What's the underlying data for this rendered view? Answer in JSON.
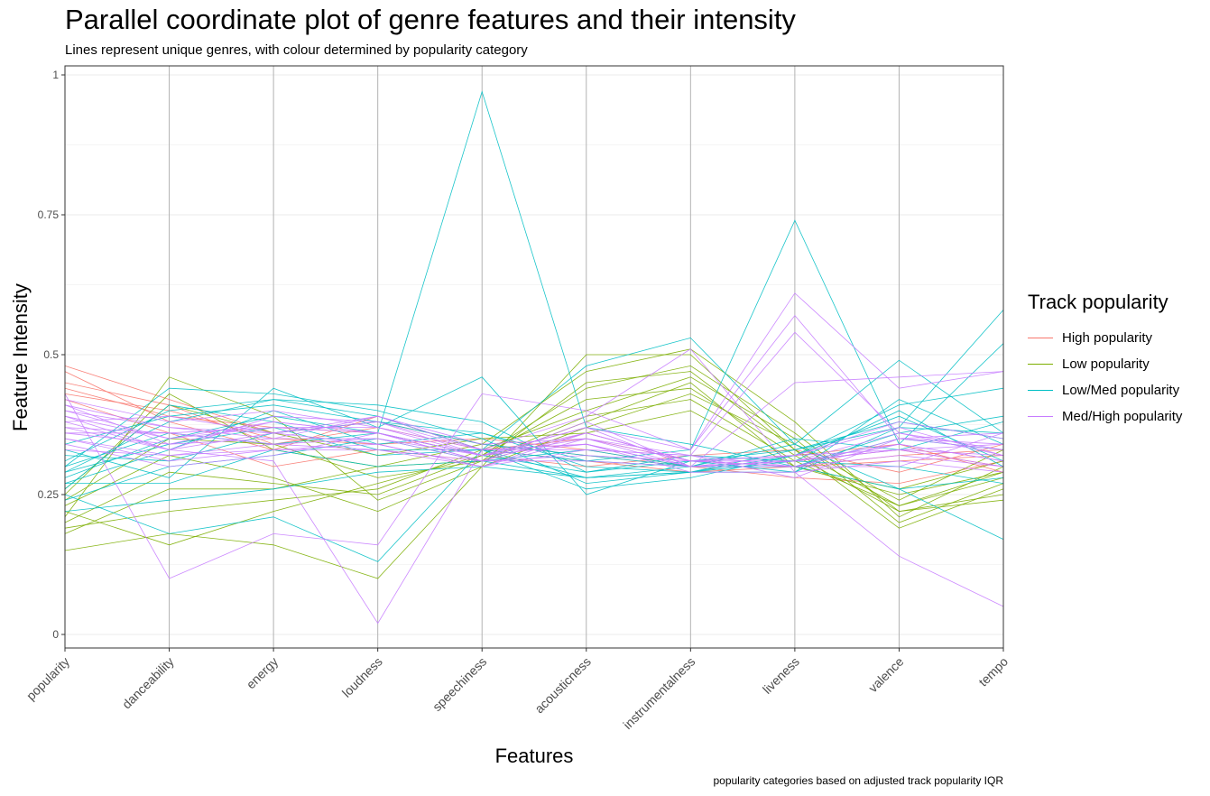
{
  "chart_data": {
    "type": "line",
    "title": "Parallel coordinate plot of genre features and their intensity",
    "subtitle": "Lines represent unique genres, with colour determined by popularity category",
    "caption": "popularity categories based on adjusted track popularity IQR",
    "xlabel": "Features",
    "ylabel": "Feature Intensity",
    "ylim": [
      0,
      1
    ],
    "yticks": [
      0,
      0.25,
      0.5,
      0.75,
      1
    ],
    "ytick_labels": [
      "0",
      "0.25",
      "0.5",
      "0.75",
      "1"
    ],
    "categories": [
      "popularity",
      "danceability",
      "energy",
      "loudness",
      "speechiness",
      "acousticness",
      "instrumentalness",
      "liveness",
      "valence",
      "tempo"
    ],
    "grid": true,
    "legend": {
      "title": "Track popularity",
      "position": "right",
      "entries": [
        {
          "label": "High popularity",
          "color": "#F8766D"
        },
        {
          "label": "Low popularity",
          "color": "#7CAE00"
        },
        {
          "label": "Low/Med popularity",
          "color": "#00BFC4"
        },
        {
          "label": "Med/High popularity",
          "color": "#C77CFF"
        }
      ]
    },
    "series": [
      {
        "group": "High popularity",
        "values": [
          0.48,
          0.42,
          0.36,
          0.38,
          0.34,
          0.32,
          0.3,
          0.31,
          0.33,
          0.3
        ]
      },
      {
        "group": "High popularity",
        "values": [
          0.45,
          0.41,
          0.34,
          0.37,
          0.33,
          0.35,
          0.31,
          0.3,
          0.31,
          0.32
        ]
      },
      {
        "group": "High popularity",
        "values": [
          0.44,
          0.39,
          0.37,
          0.36,
          0.32,
          0.3,
          0.32,
          0.33,
          0.29,
          0.34
        ]
      },
      {
        "group": "High popularity",
        "values": [
          0.43,
          0.4,
          0.35,
          0.34,
          0.35,
          0.33,
          0.3,
          0.28,
          0.27,
          0.31
        ]
      },
      {
        "group": "High popularity",
        "values": [
          0.42,
          0.36,
          0.3,
          0.33,
          0.31,
          0.36,
          0.31,
          0.32,
          0.34,
          0.29
        ]
      },
      {
        "group": "High popularity",
        "values": [
          0.47,
          0.38,
          0.33,
          0.39,
          0.33,
          0.31,
          0.29,
          0.3,
          0.32,
          0.33
        ]
      },
      {
        "group": "Low popularity",
        "values": [
          0.15,
          0.18,
          0.16,
          0.1,
          0.3,
          0.5,
          0.5,
          0.33,
          0.19,
          0.26
        ]
      },
      {
        "group": "Low popularity",
        "values": [
          0.22,
          0.16,
          0.22,
          0.27,
          0.32,
          0.44,
          0.48,
          0.36,
          0.22,
          0.24
        ]
      },
      {
        "group": "Low popularity",
        "values": [
          0.21,
          0.46,
          0.39,
          0.24,
          0.31,
          0.38,
          0.45,
          0.3,
          0.25,
          0.29
        ]
      },
      {
        "group": "Low popularity",
        "values": [
          0.25,
          0.43,
          0.33,
          0.3,
          0.34,
          0.47,
          0.51,
          0.38,
          0.21,
          0.3
        ]
      },
      {
        "group": "Low popularity",
        "values": [
          0.19,
          0.22,
          0.24,
          0.26,
          0.33,
          0.4,
          0.46,
          0.35,
          0.2,
          0.27
        ]
      },
      {
        "group": "Low popularity",
        "values": [
          0.23,
          0.32,
          0.28,
          0.22,
          0.3,
          0.37,
          0.43,
          0.34,
          0.24,
          0.33
        ]
      },
      {
        "group": "Low popularity",
        "values": [
          0.26,
          0.41,
          0.36,
          0.32,
          0.35,
          0.36,
          0.4,
          0.3,
          0.26,
          0.31
        ]
      },
      {
        "group": "Low popularity",
        "values": [
          0.24,
          0.35,
          0.34,
          0.28,
          0.31,
          0.45,
          0.47,
          0.33,
          0.23,
          0.29
        ]
      },
      {
        "group": "Low popularity",
        "values": [
          0.2,
          0.29,
          0.27,
          0.25,
          0.32,
          0.42,
          0.44,
          0.32,
          0.22,
          0.25
        ]
      },
      {
        "group": "Low popularity",
        "values": [
          0.18,
          0.26,
          0.26,
          0.3,
          0.31,
          0.39,
          0.42,
          0.31,
          0.23,
          0.28
        ]
      },
      {
        "group": "Low/Med popularity",
        "values": [
          0.3,
          0.36,
          0.34,
          0.36,
          0.97,
          0.37,
          0.34,
          0.3,
          0.26,
          0.28
        ]
      },
      {
        "group": "Low/Med popularity",
        "values": [
          0.26,
          0.41,
          0.38,
          0.33,
          0.33,
          0.31,
          0.33,
          0.74,
          0.34,
          0.52
        ]
      },
      {
        "group": "Low/Med popularity",
        "values": [
          0.29,
          0.38,
          0.42,
          0.39,
          0.33,
          0.48,
          0.53,
          0.34,
          0.49,
          0.36
        ]
      },
      {
        "group": "Low/Med popularity",
        "values": [
          0.25,
          0.18,
          0.21,
          0.13,
          0.33,
          0.28,
          0.3,
          0.34,
          0.26,
          0.17
        ]
      },
      {
        "group": "Low/Med popularity",
        "values": [
          0.33,
          0.28,
          0.44,
          0.37,
          0.46,
          0.25,
          0.31,
          0.29,
          0.37,
          0.58
        ]
      },
      {
        "group": "Low/Med popularity",
        "values": [
          0.31,
          0.4,
          0.42,
          0.41,
          0.38,
          0.29,
          0.32,
          0.31,
          0.4,
          0.3
        ]
      },
      {
        "group": "Low/Med popularity",
        "values": [
          0.27,
          0.33,
          0.4,
          0.34,
          0.36,
          0.3,
          0.29,
          0.32,
          0.41,
          0.44
        ]
      },
      {
        "group": "Low/Med popularity",
        "values": [
          0.32,
          0.31,
          0.36,
          0.38,
          0.34,
          0.32,
          0.3,
          0.3,
          0.35,
          0.33
        ]
      },
      {
        "group": "Low/Med popularity",
        "values": [
          0.28,
          0.35,
          0.39,
          0.36,
          0.32,
          0.29,
          0.31,
          0.33,
          0.38,
          0.35
        ]
      },
      {
        "group": "Low/Med popularity",
        "values": [
          0.3,
          0.44,
          0.43,
          0.4,
          0.35,
          0.27,
          0.29,
          0.29,
          0.42,
          0.34
        ]
      },
      {
        "group": "Low/Med popularity",
        "values": [
          0.24,
          0.3,
          0.32,
          0.35,
          0.31,
          0.33,
          0.3,
          0.35,
          0.33,
          0.38
        ]
      },
      {
        "group": "Low/Med popularity",
        "values": [
          0.22,
          0.24,
          0.26,
          0.29,
          0.3,
          0.28,
          0.29,
          0.31,
          0.3,
          0.27
        ]
      },
      {
        "group": "Low/Med popularity",
        "values": [
          0.34,
          0.39,
          0.41,
          0.38,
          0.36,
          0.31,
          0.3,
          0.3,
          0.36,
          0.39
        ]
      },
      {
        "group": "Low/Med popularity",
        "values": [
          0.29,
          0.34,
          0.37,
          0.32,
          0.33,
          0.26,
          0.28,
          0.32,
          0.39,
          0.31
        ]
      },
      {
        "group": "Low/Med popularity",
        "values": [
          0.27,
          0.27,
          0.33,
          0.3,
          0.31,
          0.28,
          0.29,
          0.33,
          0.37,
          0.36
        ]
      },
      {
        "group": "Med/High popularity",
        "values": [
          0.43,
          0.1,
          0.18,
          0.16,
          0.43,
          0.4,
          0.33,
          0.61,
          0.44,
          0.47
        ]
      },
      {
        "group": "Med/High popularity",
        "values": [
          0.38,
          0.33,
          0.31,
          0.02,
          0.33,
          0.39,
          0.51,
          0.29,
          0.14,
          0.05
        ]
      },
      {
        "group": "Med/High popularity",
        "values": [
          0.4,
          0.35,
          0.38,
          0.36,
          0.32,
          0.37,
          0.33,
          0.57,
          0.35,
          0.36
        ]
      },
      {
        "group": "Med/High popularity",
        "values": [
          0.41,
          0.37,
          0.36,
          0.39,
          0.34,
          0.35,
          0.32,
          0.54,
          0.36,
          0.32
        ]
      },
      {
        "group": "Med/High popularity",
        "values": [
          0.39,
          0.33,
          0.39,
          0.38,
          0.33,
          0.34,
          0.3,
          0.45,
          0.46,
          0.47
        ]
      },
      {
        "group": "Med/High popularity",
        "values": [
          0.37,
          0.36,
          0.37,
          0.36,
          0.32,
          0.36,
          0.31,
          0.32,
          0.33,
          0.34
        ]
      },
      {
        "group": "Med/High popularity",
        "values": [
          0.36,
          0.34,
          0.35,
          0.35,
          0.31,
          0.38,
          0.3,
          0.31,
          0.34,
          0.31
        ]
      },
      {
        "group": "Med/High popularity",
        "values": [
          0.42,
          0.38,
          0.4,
          0.37,
          0.33,
          0.33,
          0.32,
          0.3,
          0.35,
          0.33
        ]
      },
      {
        "group": "Med/High popularity",
        "values": [
          0.35,
          0.31,
          0.33,
          0.34,
          0.3,
          0.35,
          0.3,
          0.3,
          0.32,
          0.3
        ]
      },
      {
        "group": "Med/High popularity",
        "values": [
          0.33,
          0.32,
          0.34,
          0.33,
          0.31,
          0.32,
          0.31,
          0.31,
          0.33,
          0.32
        ]
      },
      {
        "group": "Med/High popularity",
        "values": [
          0.38,
          0.39,
          0.36,
          0.38,
          0.32,
          0.34,
          0.29,
          0.29,
          0.31,
          0.29
        ]
      },
      {
        "group": "Med/High popularity",
        "values": [
          0.39,
          0.35,
          0.37,
          0.37,
          0.32,
          0.37,
          0.3,
          0.32,
          0.38,
          0.35
        ]
      },
      {
        "group": "Med/High popularity",
        "values": [
          0.34,
          0.3,
          0.32,
          0.36,
          0.31,
          0.36,
          0.31,
          0.3,
          0.34,
          0.31
        ]
      },
      {
        "group": "Med/High popularity",
        "values": [
          0.4,
          0.37,
          0.35,
          0.39,
          0.33,
          0.34,
          0.3,
          0.31,
          0.36,
          0.33
        ]
      },
      {
        "group": "Med/High popularity",
        "values": [
          0.37,
          0.33,
          0.36,
          0.34,
          0.3,
          0.33,
          0.32,
          0.28,
          0.35,
          0.34
        ]
      },
      {
        "group": "Med/High popularity",
        "values": [
          0.36,
          0.36,
          0.34,
          0.35,
          0.32,
          0.35,
          0.31,
          0.3,
          0.3,
          0.36
        ]
      },
      {
        "group": "Med/High popularity",
        "values": [
          0.41,
          0.34,
          0.38,
          0.36,
          0.31,
          0.31,
          0.3,
          0.31,
          0.33,
          0.3
        ]
      },
      {
        "group": "Med/High popularity",
        "values": [
          0.35,
          0.32,
          0.33,
          0.33,
          0.3,
          0.36,
          0.31,
          0.32,
          0.37,
          0.32
        ]
      }
    ]
  }
}
